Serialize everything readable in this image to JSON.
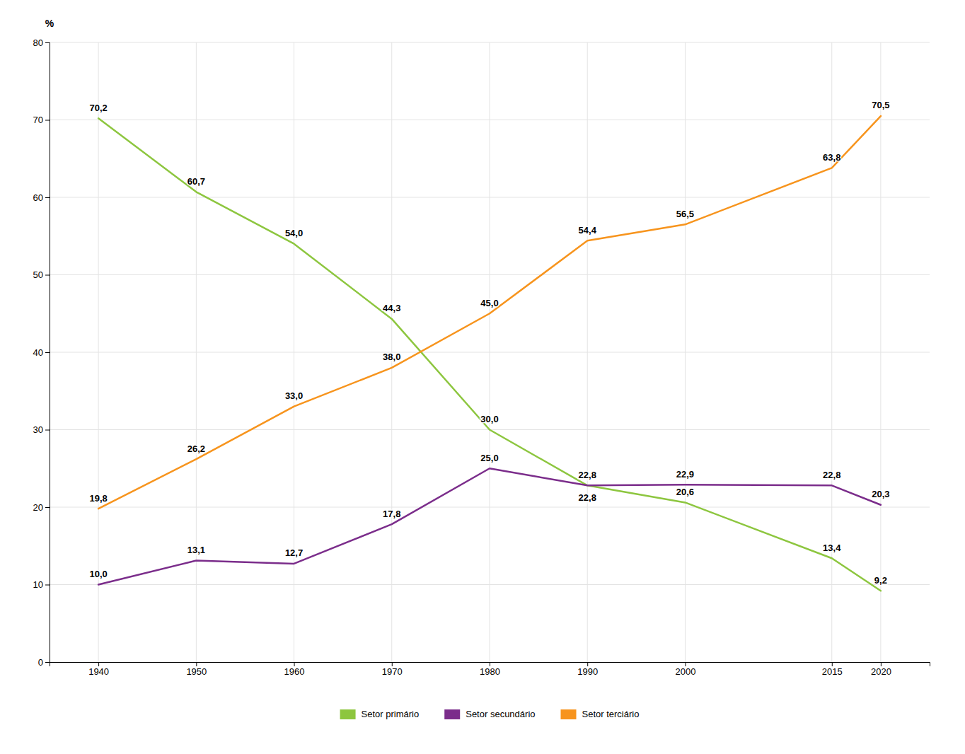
{
  "chart_data": {
    "type": "line",
    "ylabel": "%",
    "x": [
      1940,
      1950,
      1960,
      1970,
      1980,
      1990,
      2000,
      2015,
      2020
    ],
    "xlim": [
      1935,
      2025
    ],
    "xticks": [
      1940,
      1950,
      1960,
      1970,
      1980,
      1990,
      2000,
      2015,
      2020
    ],
    "ylim": [
      0,
      80
    ],
    "yticks": [
      0,
      10,
      20,
      30,
      40,
      50,
      60,
      70,
      80
    ],
    "grid": true,
    "legend": "bottom",
    "data_labels": true,
    "series": [
      {
        "name": "Setor primário",
        "color": "#8dc63f",
        "values": [
          70.2,
          60.7,
          54.0,
          44.3,
          30.0,
          22.8,
          20.6,
          13.4,
          9.2
        ],
        "value_labels": [
          "70,2",
          "60,7",
          "54,0",
          "44,3",
          "30,0",
          "22,8",
          "20,6",
          "13,4",
          "9,2"
        ]
      },
      {
        "name": "Setor secundário",
        "color": "#7b2d8b",
        "values": [
          10.0,
          13.1,
          12.7,
          17.8,
          25.0,
          22.8,
          22.9,
          22.8,
          20.3
        ],
        "value_labels": [
          "10,0",
          "13,1",
          "12,7",
          "17,8",
          "25,0",
          "22,8",
          "22,9",
          "22,8",
          "20,3"
        ]
      },
      {
        "name": "Setor terciário",
        "color": "#f7941d",
        "values": [
          19.8,
          26.2,
          33.0,
          38.0,
          45.0,
          54.4,
          56.5,
          63.8,
          70.5
        ],
        "value_labels": [
          "19,8",
          "26,2",
          "33,0",
          "38,0",
          "45,0",
          "54,4",
          "56,5",
          "63,8",
          "70,5"
        ]
      }
    ]
  }
}
